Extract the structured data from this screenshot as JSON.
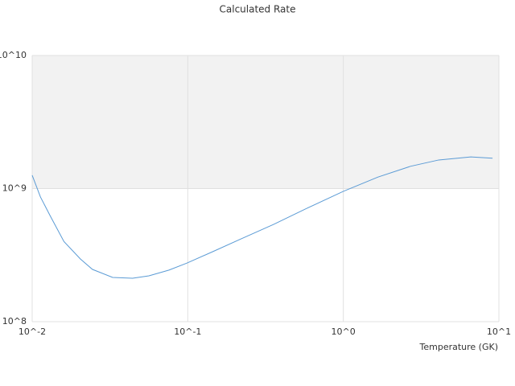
{
  "chart_data": {
    "type": "line",
    "title": "Calculated Rate",
    "x_label": "Temperature (GK)",
    "log_x": true,
    "log_y": true,
    "x": [
      0.01,
      0.0113,
      0.013,
      0.016,
      0.0204,
      0.0244,
      0.0329,
      0.0442,
      0.0563,
      0.0757,
      0.099,
      0.145,
      0.22,
      0.356,
      0.57,
      1.0,
      1.67,
      2.7,
      4.1,
      6.6,
      9.1
    ],
    "series": [
      {
        "color": "#5b9bd5",
        "values": [
          1260000000,
          865000000,
          630000000,
          400000000,
          296000000,
          247000000,
          215000000,
          212000000,
          221000000,
          244000000,
          276000000,
          336000000,
          419000000,
          538000000,
          702000000,
          953000000,
          1220000000,
          1470000000,
          1640000000,
          1730000000,
          1690000000
        ]
      }
    ],
    "xlim": [
      0.01,
      10
    ],
    "xticks": [
      {
        "value": 0.01,
        "label": "10^-2"
      },
      {
        "value": 0.1,
        "label": "10^-1"
      },
      {
        "value": 1,
        "label": "10^0"
      },
      {
        "value": 10,
        "label": "10^1"
      }
    ],
    "ylim": [
      100000000,
      10000000000
    ],
    "yticks": [
      {
        "value": 100000000,
        "label": "10^8"
      },
      {
        "value": 1000000000,
        "label": "10^9"
      },
      {
        "value": 10000000000,
        "label": "10^10"
      }
    ],
    "band_color": "#f2f2f2"
  }
}
